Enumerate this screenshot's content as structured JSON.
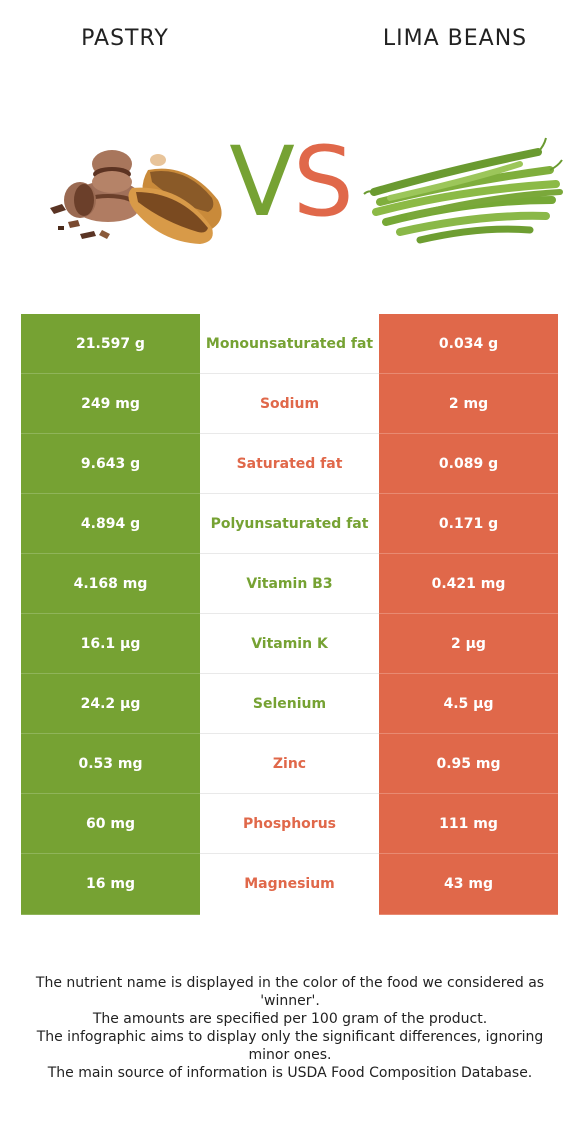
{
  "header": {
    "left_food": "PASTRY",
    "right_food": "LIMA BEANS",
    "vs_v": "V",
    "vs_s": "S"
  },
  "colors": {
    "pastry_green": "#76a233",
    "beans_red": "#e0684a"
  },
  "rows": [
    {
      "left": "21.597 g",
      "nutrient": "Monounsaturated fat",
      "right": "0.034 g",
      "winner": "pastry"
    },
    {
      "left": "249 mg",
      "nutrient": "Sodium",
      "right": "2 mg",
      "winner": "beans"
    },
    {
      "left": "9.643 g",
      "nutrient": "Saturated fat",
      "right": "0.089 g",
      "winner": "beans"
    },
    {
      "left": "4.894 g",
      "nutrient": "Polyunsaturated fat",
      "right": "0.171 g",
      "winner": "pastry"
    },
    {
      "left": "4.168 mg",
      "nutrient": "Vitamin B3",
      "right": "0.421 mg",
      "winner": "pastry"
    },
    {
      "left": "16.1 µg",
      "nutrient": "Vitamin K",
      "right": "2 µg",
      "winner": "pastry"
    },
    {
      "left": "24.2 µg",
      "nutrient": "Selenium",
      "right": "4.5 µg",
      "winner": "pastry"
    },
    {
      "left": "0.53 mg",
      "nutrient": "Zinc",
      "right": "0.95 mg",
      "winner": "beans"
    },
    {
      "left": "60 mg",
      "nutrient": "Phosphorus",
      "right": "111 mg",
      "winner": "beans"
    },
    {
      "left": "16 mg",
      "nutrient": "Magnesium",
      "right": "43 mg",
      "winner": "beans"
    }
  ],
  "footnotes": [
    "The nutrient name is displayed in the color of the food we considered as 'winner'.",
    "The amounts are specified per 100 gram of the product.",
    "The infographic aims to display only the significant differences, ignoring minor ones.",
    "The main source of information is USDA Food Composition Database."
  ]
}
